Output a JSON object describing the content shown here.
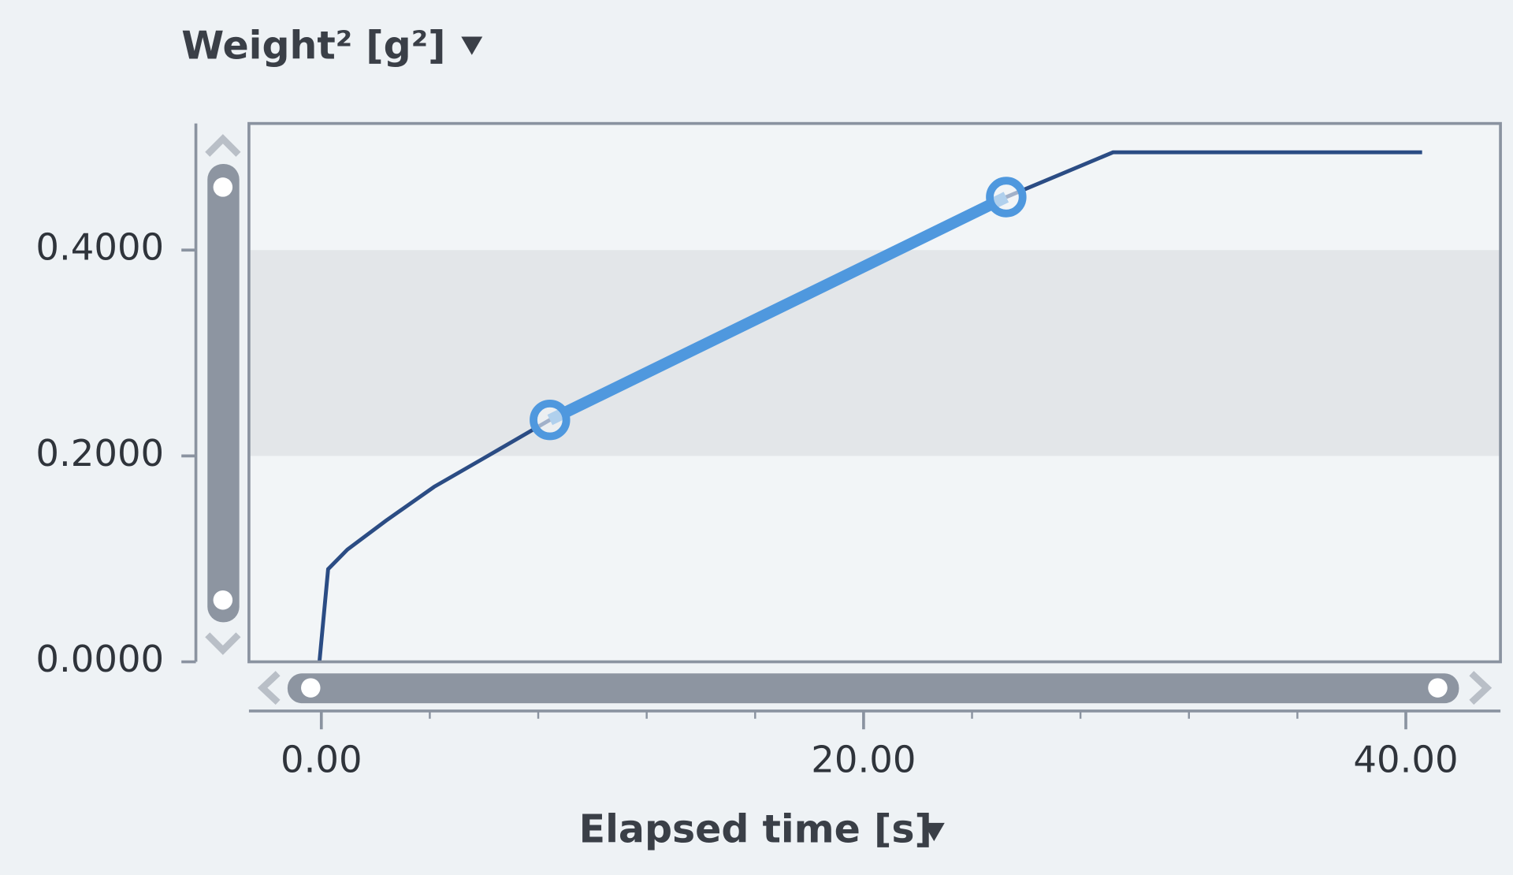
{
  "chart_data": {
    "type": "line",
    "title": "Weight² [g²]",
    "x_label": "Elapsed time [s]",
    "x": [
      -0.07,
      0.25,
      0.96,
      2.38,
      4.16,
      5.94,
      8.43,
      25.26,
      27.3,
      29.2,
      40.6
    ],
    "series": [
      {
        "color": "#2b4c84",
        "values": [
          0,
          0.09,
          0.109,
          0.137,
          0.17,
          0.197,
          0.235,
          0.4515,
          0.474,
          0.495,
          0.495
        ]
      }
    ],
    "highlight": {
      "color": "#4f98de",
      "x": [
        8.43,
        25.26
      ],
      "values": [
        0.235,
        0.4515
      ]
    },
    "band": [
      0.2,
      0.4
    ],
    "xlim": [
      -2.67,
      43.49
    ],
    "ylim": [
      0,
      0.523
    ],
    "xticks": [
      {
        "value": 0,
        "label": "0.00"
      },
      {
        "value": 20,
        "label": "20.00"
      },
      {
        "value": 40,
        "label": "40.00"
      }
    ],
    "xminorticks": [
      4,
      8,
      12,
      16,
      24,
      28,
      32,
      36
    ],
    "yticks": [
      {
        "value": 0,
        "label": "0.0000"
      },
      {
        "value": 0.2,
        "label": "0.2000"
      },
      {
        "value": 0.4,
        "label": "0.4000"
      }
    ]
  }
}
